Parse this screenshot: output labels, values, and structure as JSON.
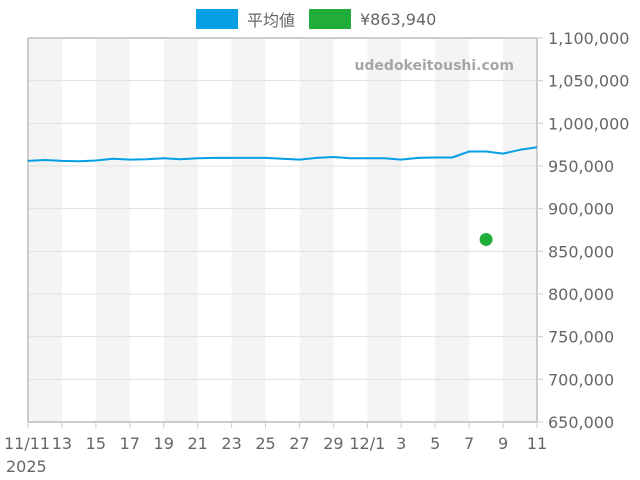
{
  "legend": [
    {
      "label": "平均値",
      "color": "#059fe6"
    },
    {
      "label": "¥863,940",
      "color": "#21ad3a"
    }
  ],
  "watermark": "udedokeitoushi.com",
  "chart_data": {
    "type": "line",
    "title": "",
    "xlabel": "",
    "ylabel": "",
    "ylim": [
      650000,
      1100000
    ],
    "y_ticks": [
      "650,000",
      "700,000",
      "750,000",
      "800,000",
      "850,000",
      "900,000",
      "950,000",
      "1,000,000",
      "1,050,000",
      "1,100,000"
    ],
    "x_ticks": [
      "11/11\n2025",
      "13",
      "15",
      "17",
      "19",
      "21",
      "23",
      "25",
      "27",
      "29",
      "12/1",
      "3",
      "5",
      "7",
      "9",
      "11"
    ],
    "grid": true,
    "legend_position": "top",
    "x": [
      "2025-11-11",
      "2025-11-12",
      "2025-11-13",
      "2025-11-14",
      "2025-11-15",
      "2025-11-16",
      "2025-11-17",
      "2025-11-18",
      "2025-11-19",
      "2025-11-20",
      "2025-11-21",
      "2025-11-22",
      "2025-11-23",
      "2025-11-24",
      "2025-11-25",
      "2025-11-26",
      "2025-11-27",
      "2025-11-28",
      "2025-11-29",
      "2025-11-30",
      "2025-12-01",
      "2025-12-02",
      "2025-12-03",
      "2025-12-04",
      "2025-12-05",
      "2025-12-06",
      "2025-12-07",
      "2025-12-08",
      "2025-12-09",
      "2025-12-10",
      "2025-12-11"
    ],
    "series": [
      {
        "name": "平均値",
        "type": "line",
        "color": "#059fe6",
        "values": [
          956000,
          957000,
          956000,
          955500,
          956500,
          958500,
          957500,
          958000,
          959000,
          958000,
          959000,
          959500,
          959500,
          959500,
          959500,
          958500,
          957500,
          959500,
          960500,
          959000,
          959000,
          959000,
          957500,
          959500,
          960000,
          960000,
          967000,
          967000,
          964500,
          969000,
          972000
        ]
      },
      {
        "name": "¥863,940",
        "type": "scatter",
        "color": "#21ad3a",
        "points": [
          {
            "x": "2025-12-08",
            "y": 863940
          }
        ]
      }
    ]
  }
}
